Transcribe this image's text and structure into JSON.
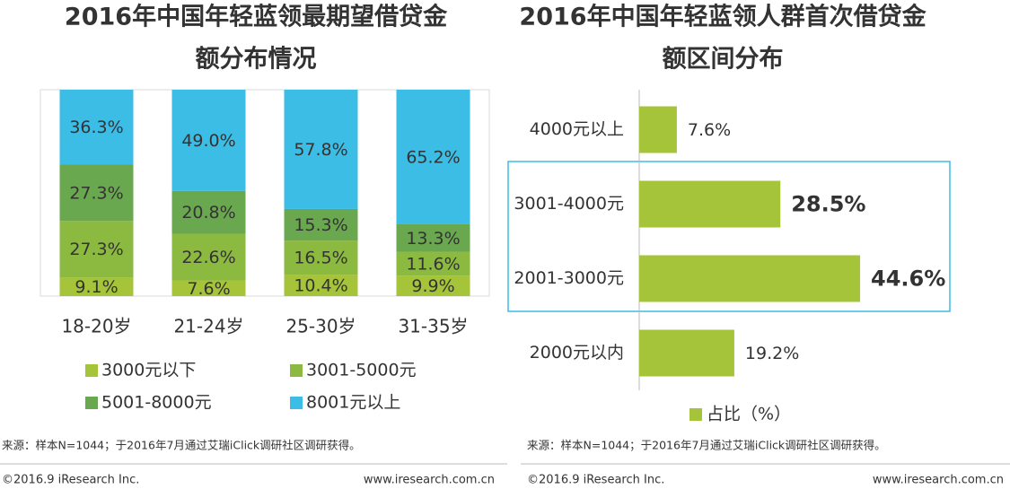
{
  "chart_data": [
    {
      "type": "stacked_bar",
      "title": [
        "2016年中国年轻蓝领最期望借贷金",
        "额分布情况"
      ],
      "categories": [
        "18-20岁",
        "21-24岁",
        "25-30岁",
        "31-35岁"
      ],
      "series": [
        {
          "name": "3000元以下",
          "color": "#a5c43a",
          "values": [
            9.1,
            7.6,
            10.4,
            9.9
          ],
          "value_labels": [
            "9.1%",
            "7.6%",
            "10.4%",
            "9.9%"
          ]
        },
        {
          "name": "3001-5000元",
          "color": "#8cba41",
          "values": [
            27.3,
            22.6,
            16.5,
            11.6
          ],
          "value_labels": [
            "27.3%",
            "22.6%",
            "16.5%",
            "11.6%"
          ]
        },
        {
          "name": "5001-8000元",
          "color": "#6aa84f",
          "values": [
            27.3,
            20.8,
            15.3,
            13.3
          ],
          "value_labels": [
            "27.3%",
            "20.8%",
            "15.3%",
            "13.3%"
          ]
        },
        {
          "name": "8001元以上",
          "color": "#3bbde6",
          "values": [
            36.3,
            49.0,
            57.8,
            65.2
          ],
          "value_labels": [
            "36.3%",
            "49.0%",
            "57.8%",
            "65.2%"
          ]
        }
      ],
      "ylim": [
        0,
        100
      ]
    },
    {
      "type": "hbar",
      "title": [
        "2016年中国年轻蓝领人群首次借贷金",
        "额区间分布"
      ],
      "categories": [
        "4000元以上",
        "3001-4000元",
        "2001-3000元",
        "2000元以内"
      ],
      "series": [
        {
          "name": "占比（%）",
          "color": "#a5c43a",
          "values": [
            7.6,
            28.5,
            44.6,
            19.2
          ],
          "value_labels": [
            "7.6%",
            "28.5%",
            "44.6%",
            "19.2%"
          ]
        }
      ],
      "xlim": [
        0,
        60
      ]
    }
  ],
  "source_notes": [
    "来源：样本N=1044；于2016年7月通过艾瑞iClick调研社区调研获得。",
    "来源：样本N=1044；于2016年7月通过艾瑞iClick调研社区调研获得。"
  ],
  "footers": [
    {
      "copyright": "©2016.9 iResearch Inc.",
      "url": "www.iresearch.com.cn"
    },
    {
      "copyright": "©2016.9 iResearch Inc.",
      "url": "www.iresearch.com.cn"
    }
  ]
}
